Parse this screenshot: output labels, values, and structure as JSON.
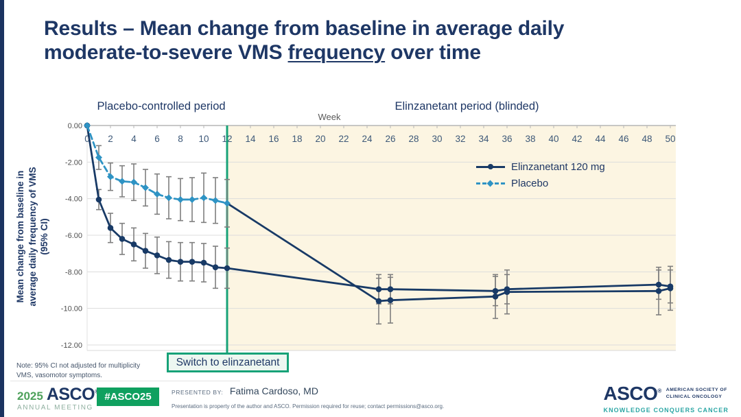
{
  "slide": {
    "title": {
      "pre": "Results – Mean change from baseline in average daily\nmoderate-to-severe VMS ",
      "underlined": "frequency",
      "post": " over time"
    },
    "switch_label": "Switch to elinzanetant",
    "note_line1": "Note: 95% CI not adjusted for multiplicity",
    "note_line2": "VMS, vasomotor symptoms."
  },
  "chart_data": {
    "type": "line",
    "xlabel": "Week",
    "ylabel": "Mean change from baseline in average daily frequency of VMS (95% CI)",
    "ylabel_lines": [
      "Mean change from baseline in",
      "average daily frequency of  VMS",
      "(95% CI)"
    ],
    "period_labels": [
      {
        "label": "Placebo-controlled period"
      },
      {
        "label": "Elinzanetant period (blinded)"
      }
    ],
    "xlim": [
      0,
      50
    ],
    "ylim": [
      -12,
      0
    ],
    "xticks": [
      0,
      2,
      4,
      6,
      8,
      10,
      12,
      14,
      16,
      18,
      20,
      22,
      24,
      26,
      28,
      30,
      32,
      34,
      36,
      38,
      40,
      42,
      44,
      46,
      48,
      50
    ],
    "yticks": [
      "0.00",
      "-2.00",
      "-4.00",
      "-6.00",
      "-8.00",
      "-10.00",
      "-12.00"
    ],
    "grid": "horizontal",
    "legend_position": "upper-right-inside",
    "switch_week": 12,
    "shaded_region": {
      "from_week": 12,
      "to_week": 50
    },
    "colors": {
      "elinzanetant": "#183A66",
      "placebo": "#2E93C4",
      "switch_line": "#17A278",
      "ci": "#7F7F7F",
      "shaded_bg": "#FCF5E2",
      "title_navy": "#1E3765"
    },
    "legend": [
      {
        "label": "Elinzanetant 120 mg",
        "color": "#183A66",
        "style": "solid",
        "marker": "circle"
      },
      {
        "label": "Placebo",
        "color": "#2E93C4",
        "style": "dashed",
        "marker": "diamond"
      }
    ],
    "series": [
      {
        "name": "Elinzanetant 120 mg",
        "color": "#183A66",
        "line": "solid",
        "marker": "circle",
        "x": [
          0,
          1,
          2,
          3,
          4,
          5,
          6,
          7,
          8,
          9,
          10,
          11,
          12,
          25,
          26,
          35,
          36,
          49,
          50
        ],
        "y": [
          0,
          -4.05,
          -5.6,
          -6.2,
          -6.5,
          -6.85,
          -7.1,
          -7.35,
          -7.45,
          -7.45,
          -7.5,
          -7.75,
          -7.8,
          -8.95,
          -8.95,
          -9.05,
          -8.95,
          -8.7,
          -8.8
        ],
        "ci": [
          0,
          0.55,
          0.8,
          0.85,
          0.9,
          0.95,
          1.0,
          1.0,
          1.05,
          1.05,
          1.05,
          1.15,
          1.1,
          0.8,
          0.8,
          0.8,
          0.8,
          0.8,
          0.9
        ]
      },
      {
        "name": "Placebo",
        "color": "#2E93C4",
        "line": "dashed",
        "marker": "diamond",
        "x": [
          0,
          1,
          2,
          3,
          4,
          5,
          6,
          7,
          8,
          9,
          10,
          11,
          12
        ],
        "y": [
          0,
          -1.75,
          -2.8,
          -3.05,
          -3.1,
          -3.4,
          -3.75,
          -3.95,
          -4.05,
          -4.05,
          -3.95,
          -4.1,
          -4.25
        ],
        "ci": [
          0,
          0.65,
          0.75,
          0.85,
          1.0,
          1.0,
          1.1,
          1.15,
          1.15,
          1.2,
          1.35,
          1.25,
          1.3
        ]
      },
      {
        "name": "Placebo group after switch to elinzanetant",
        "color": "#183A66",
        "line": "solid",
        "marker": "circle",
        "skip_first_marker": true,
        "x": [
          12,
          25,
          26,
          35,
          36,
          49,
          50
        ],
        "y": [
          -4.25,
          -9.6,
          -9.55,
          -9.35,
          -9.1,
          -9.05,
          -8.9
        ],
        "ci": [
          0,
          1.25,
          1.25,
          1.2,
          1.2,
          1.3,
          1.2
        ]
      }
    ]
  },
  "footer": {
    "meeting_year": "2025",
    "meeting_org": "ASCO",
    "reg_mark": "®",
    "meeting_name": "ANNUAL MEETING",
    "hashtag": "#ASCO25",
    "presented_by_label": "PRESENTED BY:",
    "presenter": "Fatima Cardoso, MD",
    "disclaimer": "Presentation is property of the author and ASCO. Permission required for reuse; contact permissions@asco.org.",
    "org_name": "ASCO",
    "org_line1": "AMERICAN SOCIETY OF",
    "org_line2": "CLINICAL ONCOLOGY",
    "org_tagline": "KNOWLEDGE CONQUERS CANCER"
  }
}
